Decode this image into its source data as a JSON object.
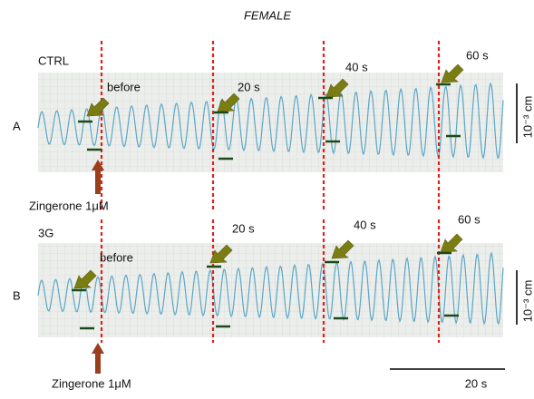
{
  "title": "FEMALE",
  "panels": [
    {
      "letter": "A",
      "group": "CTRL",
      "before": "before",
      "t20": "20 s",
      "t40": "40 s",
      "t60": "60 s",
      "stimulus": "Zingerone 1μM",
      "scale_y": "10⁻³ cm"
    },
    {
      "letter": "B",
      "group": "3G",
      "before": "before",
      "t20": "20 s",
      "t40": "40 s",
      "t60": "60 s",
      "stimulus": "Zingerone 1μM",
      "scale_y": "10⁻³ cm"
    }
  ],
  "scale_x": "20 s"
}
